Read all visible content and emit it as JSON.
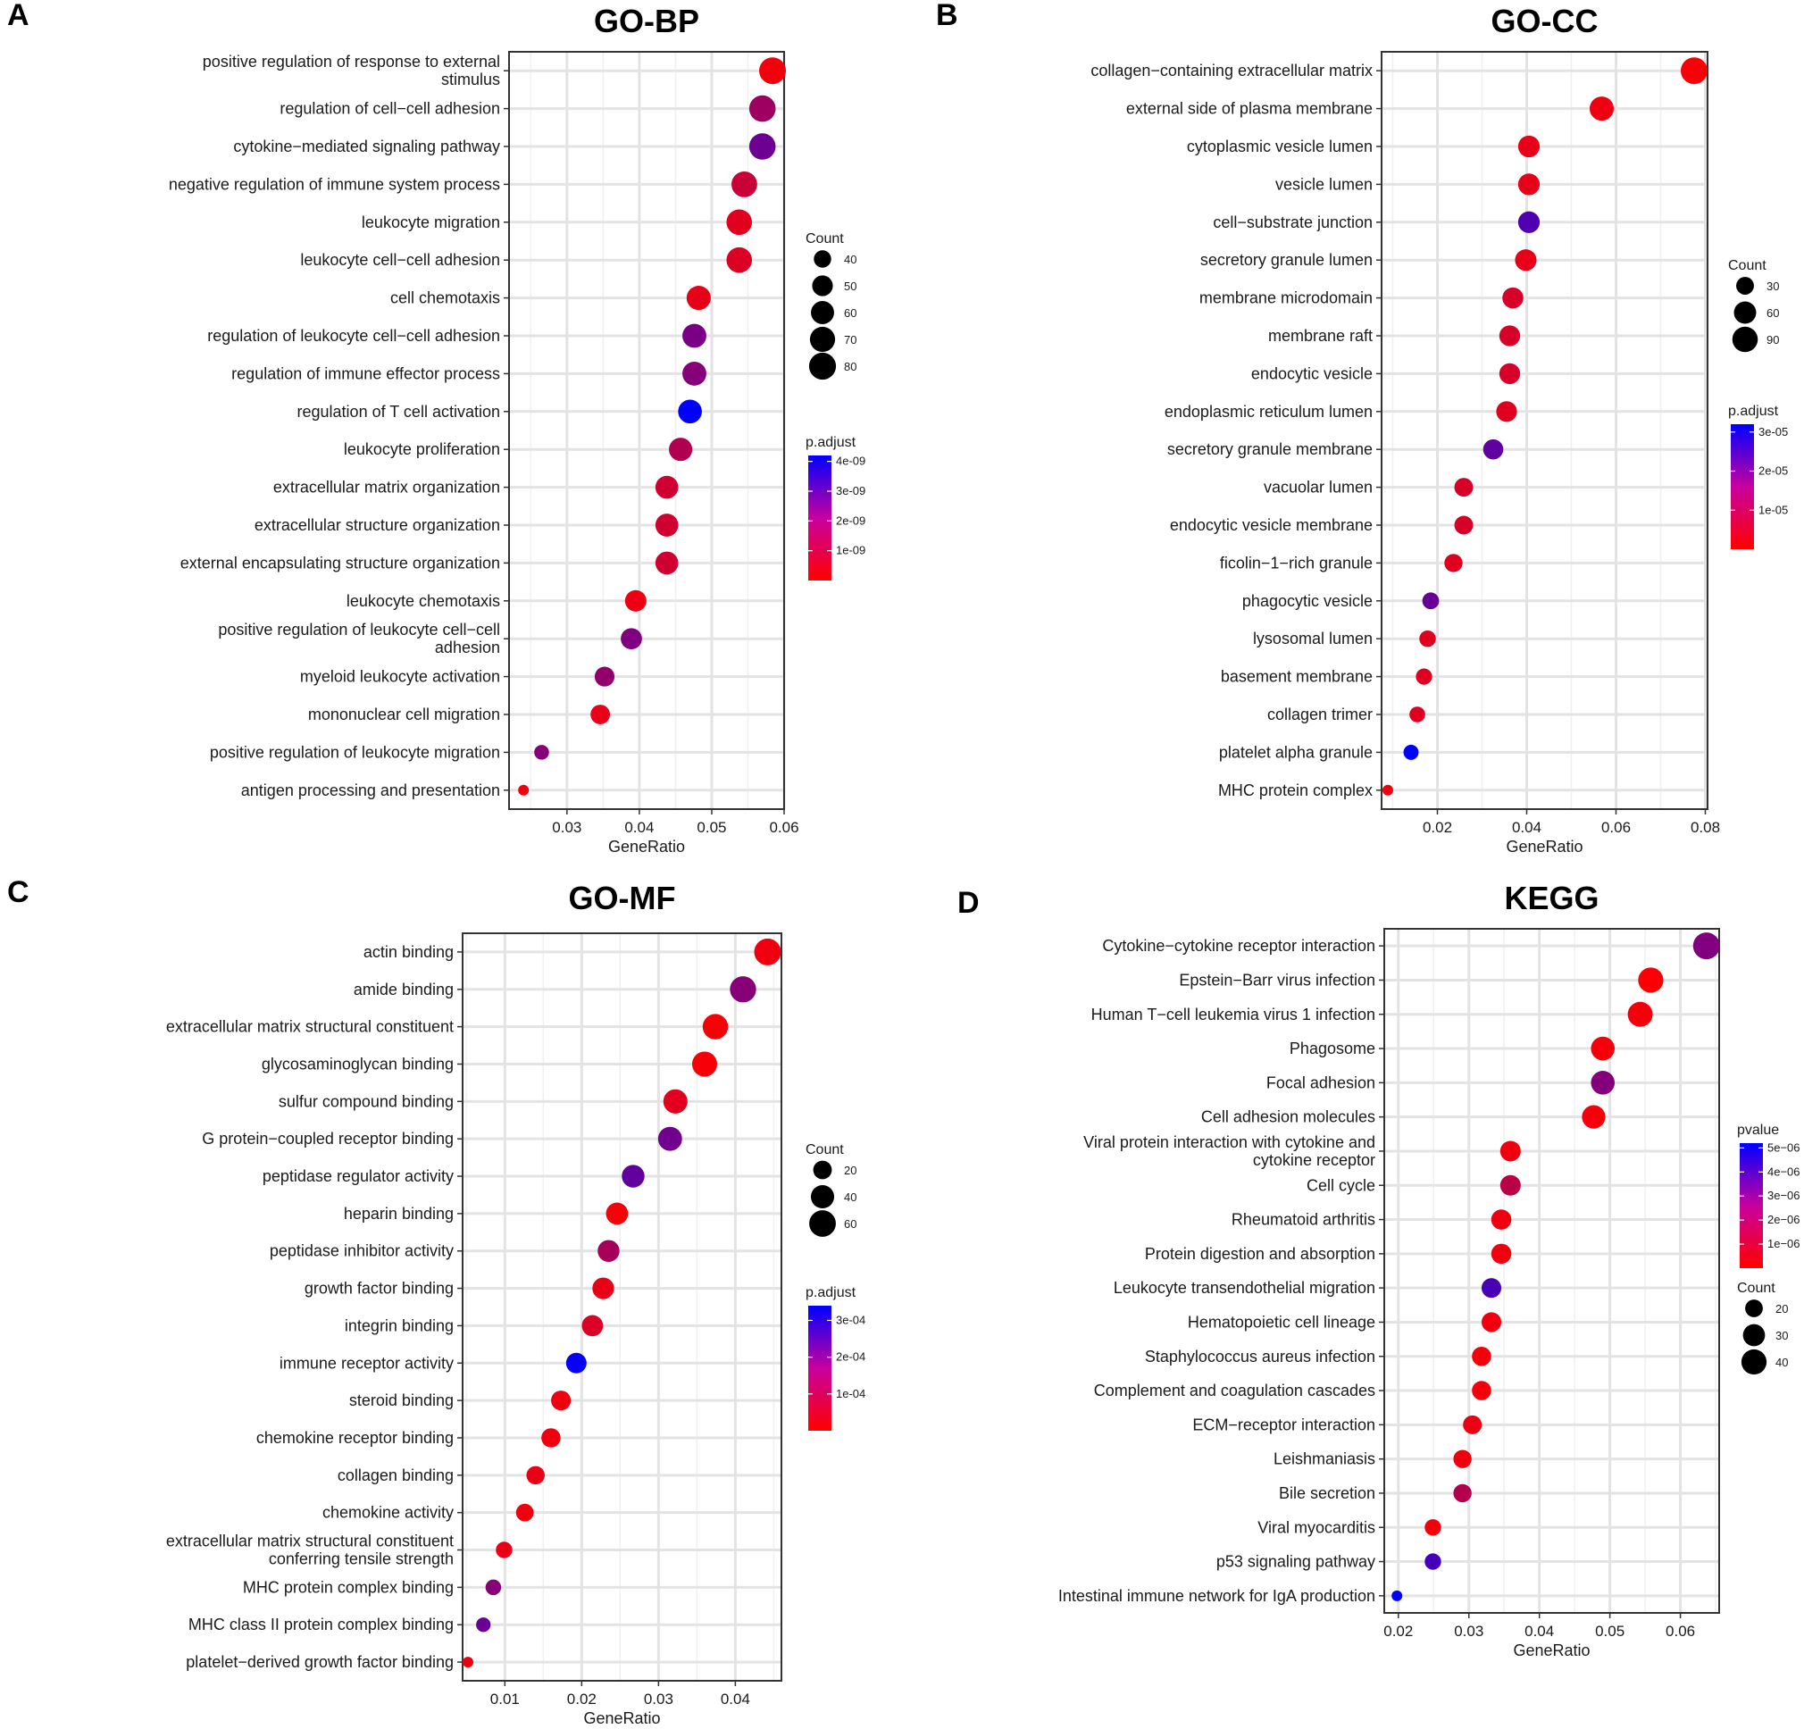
{
  "chart_data": [
    {
      "panel": "A",
      "title": "GO-BP",
      "type": "scatter",
      "xlabel": "GeneRatio",
      "xlim": [
        0.022,
        0.06
      ],
      "xticks": [
        0.03,
        0.04,
        0.05,
        0.06
      ],
      "xtick_labels": [
        "0.03",
        "0.04",
        "0.05",
        "0.06"
      ],
      "size_legend": {
        "title": "Count",
        "values": [
          40,
          50,
          60,
          70,
          80
        ],
        "labels": [
          "40",
          "50",
          "60",
          "70",
          "80"
        ]
      },
      "color_legend": {
        "title": "p.adjust",
        "min": 0,
        "max": 4.2e-09,
        "low_color": "#ff0000",
        "high_color": "#0000ff",
        "ticks": [
          4e-09,
          3e-09,
          2e-09,
          1e-09
        ],
        "tick_labels": [
          "4e-09",
          "3e-09",
          "2e-09",
          "1e-09"
        ]
      },
      "points": [
        {
          "label": [
            "positive regulation of response to external",
            "stimulus"
          ],
          "x": 0.0584,
          "count": 79,
          "p": 2e-10
        },
        {
          "label": [
            "regulation of cell−cell adhesion"
          ],
          "x": 0.057,
          "count": 77,
          "p": 1.6e-09
        },
        {
          "label": [
            "cytokine−mediated signaling pathway"
          ],
          "x": 0.057,
          "count": 77,
          "p": 2.4e-09
        },
        {
          "label": [
            "negative regulation of immune system process"
          ],
          "x": 0.0545,
          "count": 73,
          "p": 9e-10
        },
        {
          "label": [
            "leukocyte migration"
          ],
          "x": 0.0538,
          "count": 72,
          "p": 5e-10
        },
        {
          "label": [
            "leukocyte cell−cell adhesion"
          ],
          "x": 0.0538,
          "count": 72,
          "p": 6e-10
        },
        {
          "label": [
            "cell chemotaxis"
          ],
          "x": 0.0482,
          "count": 65,
          "p": 4e-10
        },
        {
          "label": [
            "regulation of leukocyte cell−cell adhesion"
          ],
          "x": 0.0476,
          "count": 64,
          "p": 2.2e-09
        },
        {
          "label": [
            "regulation of immune effector process"
          ],
          "x": 0.0476,
          "count": 64,
          "p": 2e-09
        },
        {
          "label": [
            "regulation of T cell activation"
          ],
          "x": 0.047,
          "count": 63,
          "p": 4.2e-09
        },
        {
          "label": [
            "leukocyte proliferation"
          ],
          "x": 0.0457,
          "count": 61,
          "p": 1.3e-09
        },
        {
          "label": [
            "extracellular matrix organization"
          ],
          "x": 0.0438,
          "count": 59,
          "p": 8e-10
        },
        {
          "label": [
            "extracellular structure organization"
          ],
          "x": 0.0438,
          "count": 59,
          "p": 8e-10
        },
        {
          "label": [
            "external encapsulating structure organization"
          ],
          "x": 0.0438,
          "count": 59,
          "p": 8e-10
        },
        {
          "label": [
            "leukocyte chemotaxis"
          ],
          "x": 0.0395,
          "count": 53,
          "p": 3e-10
        },
        {
          "label": [
            "positive regulation of leukocyte cell−cell",
            "adhesion"
          ],
          "x": 0.0389,
          "count": 52,
          "p": 2.1e-09
        },
        {
          "label": [
            "myeloid leukocyte activation"
          ],
          "x": 0.0352,
          "count": 47,
          "p": 1.8e-09
        },
        {
          "label": [
            "mononuclear cell migration"
          ],
          "x": 0.0346,
          "count": 46,
          "p": 4e-10
        },
        {
          "label": [
            "positive regulation of leukocyte migration"
          ],
          "x": 0.0265,
          "count": 35,
          "p": 2e-09
        },
        {
          "label": [
            "antigen processing and presentation"
          ],
          "x": 0.024,
          "count": 32,
          "p": 2e-10
        }
      ]
    },
    {
      "panel": "B",
      "title": "GO-CC",
      "type": "scatter",
      "xlabel": "GeneRatio",
      "xlim": [
        0.0075,
        0.0805
      ],
      "xticks": [
        0.02,
        0.04,
        0.06,
        0.08
      ],
      "xtick_labels": [
        "0.02",
        "0.04",
        "0.06",
        "0.08"
      ],
      "size_legend": {
        "title": "Count",
        "values": [
          30,
          60,
          90
        ],
        "labels": [
          "30",
          "60",
          "90"
        ]
      },
      "color_legend": {
        "title": "p.adjust",
        "min": 0,
        "max": 3.2e-05,
        "low_color": "#ff0000",
        "high_color": "#0000ff",
        "ticks": [
          3e-05,
          2e-05,
          1e-05
        ],
        "tick_labels": [
          "3e-05",
          "2e-05",
          "1e-05"
        ]
      },
      "points": [
        {
          "label": [
            "collagen−containing extracellular matrix"
          ],
          "x": 0.0775,
          "count": 105,
          "p": 1e-06
        },
        {
          "label": [
            "external side of plasma membrane"
          ],
          "x": 0.0568,
          "count": 77,
          "p": 2e-06
        },
        {
          "label": [
            "cytoplasmic vesicle lumen"
          ],
          "x": 0.0405,
          "count": 55,
          "p": 3e-06
        },
        {
          "label": [
            "vesicle lumen"
          ],
          "x": 0.0405,
          "count": 55,
          "p": 3e-06
        },
        {
          "label": [
            "cell−substrate junction"
          ],
          "x": 0.0405,
          "count": 55,
          "p": 2.2e-05
        },
        {
          "label": [
            "secretory granule lumen"
          ],
          "x": 0.0398,
          "count": 54,
          "p": 3e-06
        },
        {
          "label": [
            "membrane microdomain"
          ],
          "x": 0.0369,
          "count": 50,
          "p": 5e-06
        },
        {
          "label": [
            "membrane raft"
          ],
          "x": 0.0362,
          "count": 49,
          "p": 5e-06
        },
        {
          "label": [
            "endocytic vesicle"
          ],
          "x": 0.0362,
          "count": 49,
          "p": 5e-06
        },
        {
          "label": [
            "endoplasmic reticulum lumen"
          ],
          "x": 0.0355,
          "count": 48,
          "p": 4e-06
        },
        {
          "label": [
            "secretory granule membrane"
          ],
          "x": 0.0325,
          "count": 44,
          "p": 2e-05
        },
        {
          "label": [
            "vacuolar lumen"
          ],
          "x": 0.0259,
          "count": 35,
          "p": 5e-06
        },
        {
          "label": [
            "endocytic vesicle membrane"
          ],
          "x": 0.0259,
          "count": 35,
          "p": 5e-06
        },
        {
          "label": [
            "ficolin−1−rich granule"
          ],
          "x": 0.0236,
          "count": 32,
          "p": 4e-06
        },
        {
          "label": [
            "phagocytic vesicle"
          ],
          "x": 0.0185,
          "count": 25,
          "p": 1.9e-05
        },
        {
          "label": [
            "lysosomal lumen"
          ],
          "x": 0.0178,
          "count": 24,
          "p": 4e-06
        },
        {
          "label": [
            "basement membrane"
          ],
          "x": 0.017,
          "count": 23,
          "p": 4e-06
        },
        {
          "label": [
            "collagen trimer"
          ],
          "x": 0.0155,
          "count": 21,
          "p": 4e-06
        },
        {
          "label": [
            "platelet alpha granule"
          ],
          "x": 0.0141,
          "count": 19,
          "p": 3.2e-05
        },
        {
          "label": [
            "MHC protein complex"
          ],
          "x": 0.0089,
          "count": 12,
          "p": 2e-06
        }
      ]
    },
    {
      "panel": "C",
      "title": "GO-MF",
      "type": "scatter",
      "xlabel": "GeneRatio",
      "xlim": [
        0.0045,
        0.046
      ],
      "xticks": [
        0.01,
        0.02,
        0.03,
        0.04
      ],
      "xtick_labels": [
        "0.01",
        "0.02",
        "0.03",
        "0.04"
      ],
      "size_legend": {
        "title": "Count",
        "values": [
          20,
          40,
          60
        ],
        "labels": [
          "20",
          "40",
          "60"
        ]
      },
      "color_legend": {
        "title": "p.adjust",
        "min": 0,
        "max": 0.00034,
        "low_color": "#ff0000",
        "high_color": "#0000ff",
        "ticks": [
          0.0003,
          0.0002,
          0.0001
        ],
        "tick_labels": [
          "3e-04",
          "2e-04",
          "1e-04"
        ]
      },
      "points": [
        {
          "label": [
            "actin binding"
          ],
          "x": 0.0442,
          "count": 61,
          "p": 2e-05
        },
        {
          "label": [
            "amide binding"
          ],
          "x": 0.041,
          "count": 57,
          "p": 0.00016
        },
        {
          "label": [
            "extracellular matrix structural constituent"
          ],
          "x": 0.0374,
          "count": 52,
          "p": 1e-05
        },
        {
          "label": [
            "glycosaminoglycan binding"
          ],
          "x": 0.036,
          "count": 50,
          "p": 1e-05
        },
        {
          "label": [
            "sulfur compound binding"
          ],
          "x": 0.0322,
          "count": 45,
          "p": 4e-05
        },
        {
          "label": [
            "G protein−coupled receptor binding"
          ],
          "x": 0.0315,
          "count": 44,
          "p": 0.00019
        },
        {
          "label": [
            "peptidase regulator activity"
          ],
          "x": 0.0267,
          "count": 37,
          "p": 0.00021
        },
        {
          "label": [
            "heparin binding"
          ],
          "x": 0.0246,
          "count": 34,
          "p": 1e-05
        },
        {
          "label": [
            "peptidase inhibitor activity"
          ],
          "x": 0.0235,
          "count": 33,
          "p": 0.00012
        },
        {
          "label": [
            "growth factor binding"
          ],
          "x": 0.0228,
          "count": 32,
          "p": 3e-05
        },
        {
          "label": [
            "integrin binding"
          ],
          "x": 0.0214,
          "count": 30,
          "p": 5e-05
        },
        {
          "label": [
            "immune receptor activity"
          ],
          "x": 0.0193,
          "count": 27,
          "p": 0.00033
        },
        {
          "label": [
            "steroid binding"
          ],
          "x": 0.0173,
          "count": 24,
          "p": 2e-05
        },
        {
          "label": [
            "chemokine receptor binding"
          ],
          "x": 0.016,
          "count": 22,
          "p": 2e-05
        },
        {
          "label": [
            "collagen binding"
          ],
          "x": 0.014,
          "count": 19,
          "p": 3e-05
        },
        {
          "label": [
            "chemokine activity"
          ],
          "x": 0.0126,
          "count": 17,
          "p": 2e-05
        },
        {
          "label": [
            "extracellular matrix structural constituent",
            "conferring tensile strength"
          ],
          "x": 0.0099,
          "count": 14,
          "p": 3e-05
        },
        {
          "label": [
            "MHC protein complex binding"
          ],
          "x": 0.0085,
          "count": 12,
          "p": 0.00016
        },
        {
          "label": [
            "MHC class II protein complex binding"
          ],
          "x": 0.0072,
          "count": 10,
          "p": 0.0002
        },
        {
          "label": [
            "platelet−derived growth factor binding"
          ],
          "x": 0.0052,
          "count": 7,
          "p": 2e-05
        }
      ]
    },
    {
      "panel": "D",
      "title": "KEGG",
      "type": "scatter",
      "xlabel": "GeneRatio",
      "xlim": [
        0.018,
        0.0655
      ],
      "xticks": [
        0.02,
        0.03,
        0.04,
        0.05,
        0.06
      ],
      "xtick_labels": [
        "0.02",
        "0.03",
        "0.04",
        "0.05",
        "0.06"
      ],
      "size_legend": {
        "title": "Count",
        "values": [
          20,
          30,
          40
        ],
        "labels": [
          "20",
          "30",
          "40"
        ]
      },
      "color_legend": {
        "title": "pvalue",
        "min": 0,
        "max": 5.2e-06,
        "low_color": "#ff0000",
        "high_color": "#0000ff",
        "ticks": [
          1e-06,
          2e-06,
          3e-06,
          4e-06,
          5e-06
        ],
        "tick_labels": [
          "1e−06",
          "2e−06",
          "3e−06",
          "4e−06",
          "5e−06"
        ]
      },
      "points": [
        {
          "label": [
            "Cytokine−cytokine receptor interaction"
          ],
          "x": 0.0637,
          "count": 46,
          "p": 2.6e-06
        },
        {
          "label": [
            "Epstein−Barr virus infection"
          ],
          "x": 0.0558,
          "count": 40,
          "p": 1e-07
        },
        {
          "label": [
            "Human T−cell leukemia virus 1 infection"
          ],
          "x": 0.0543,
          "count": 39,
          "p": 2e-07
        },
        {
          "label": [
            "Phagosome"
          ],
          "x": 0.049,
          "count": 35,
          "p": 2e-07
        },
        {
          "label": [
            "Focal adhesion"
          ],
          "x": 0.049,
          "count": 35,
          "p": 2.5e-06
        },
        {
          "label": [
            "Cell adhesion molecules"
          ],
          "x": 0.0477,
          "count": 34,
          "p": 2e-07
        },
        {
          "label": [
            "Viral protein interaction with cytokine and",
            "cytokine receptor"
          ],
          "x": 0.0359,
          "count": 26,
          "p": 3e-07
        },
        {
          "label": [
            "Cell cycle"
          ],
          "x": 0.0359,
          "count": 26,
          "p": 1.4e-06
        },
        {
          "label": [
            "Rheumatoid arthritis"
          ],
          "x": 0.0346,
          "count": 25,
          "p": 3e-07
        },
        {
          "label": [
            "Protein digestion and absorption"
          ],
          "x": 0.0346,
          "count": 25,
          "p": 3e-07
        },
        {
          "label": [
            "Leukocyte transendothelial migration"
          ],
          "x": 0.0332,
          "count": 24,
          "p": 3.7e-06
        },
        {
          "label": [
            "Hematopoietic cell lineage"
          ],
          "x": 0.0332,
          "count": 24,
          "p": 3e-07
        },
        {
          "label": [
            "Staphylococcus aureus infection"
          ],
          "x": 0.0318,
          "count": 23,
          "p": 2e-07
        },
        {
          "label": [
            "Complement and coagulation cascades"
          ],
          "x": 0.0318,
          "count": 23,
          "p": 2e-07
        },
        {
          "label": [
            "ECM−receptor interaction"
          ],
          "x": 0.0305,
          "count": 22,
          "p": 4e-07
        },
        {
          "label": [
            "Leishmaniasis"
          ],
          "x": 0.0291,
          "count": 21,
          "p": 3e-07
        },
        {
          "label": [
            "Bile secretion"
          ],
          "x": 0.0291,
          "count": 21,
          "p": 1.6e-06
        },
        {
          "label": [
            "Viral myocarditis"
          ],
          "x": 0.0249,
          "count": 18,
          "p": 2e-07
        },
        {
          "label": [
            "p53 signaling pathway"
          ],
          "x": 0.0249,
          "count": 18,
          "p": 3.8e-06
        },
        {
          "label": [
            "Intestinal immune network for IgA production"
          ],
          "x": 0.0198,
          "count": 14,
          "p": 5.2e-06
        }
      ]
    }
  ]
}
